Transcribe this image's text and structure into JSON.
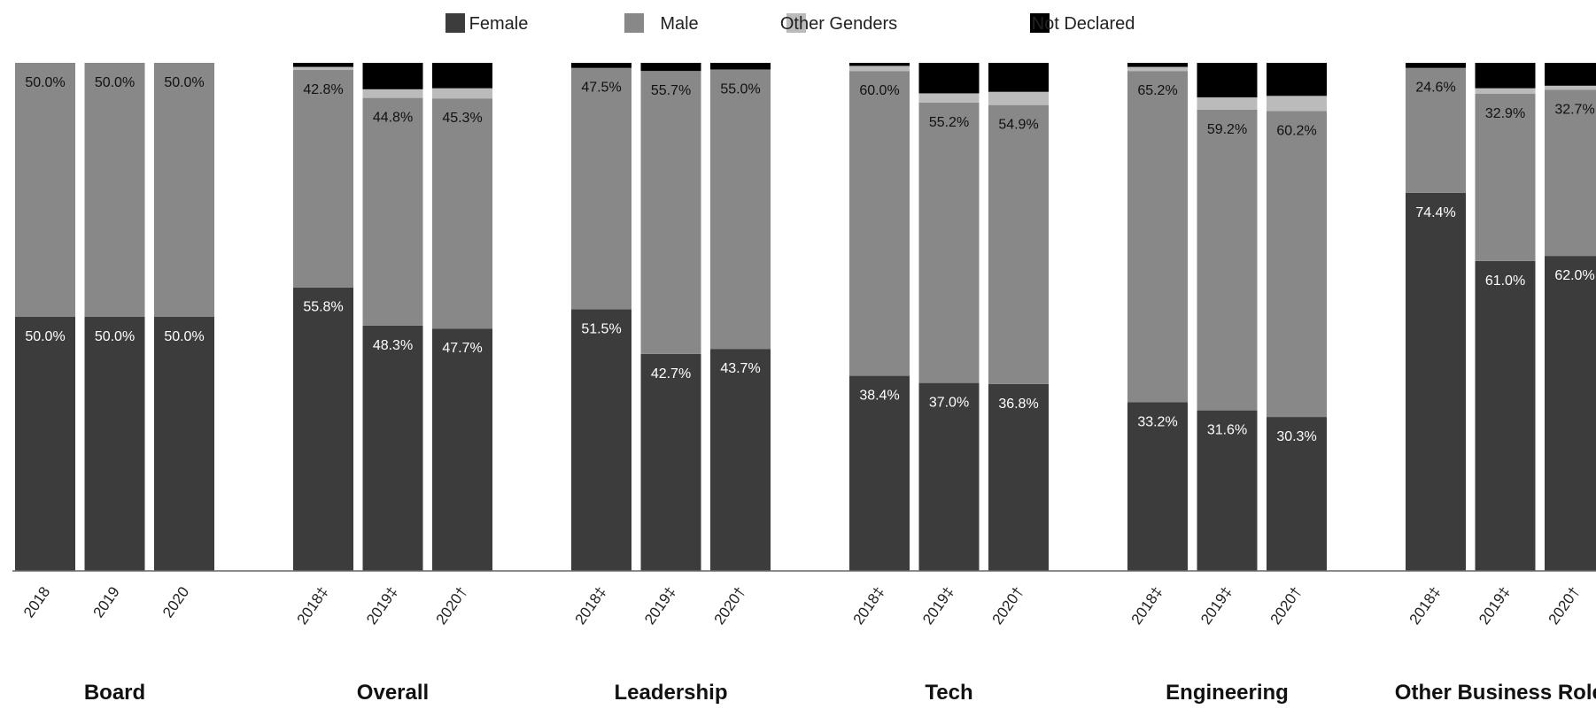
{
  "chart_data": {
    "type": "bar",
    "stacked": true,
    "ylim": [
      0,
      100
    ],
    "grid": false,
    "legend_position": "top",
    "legend": [
      "Female",
      "Male",
      "Other Genders",
      "Not Declared"
    ],
    "colors": {
      "Female": "#3c3c3c",
      "Male": "#888888",
      "Other Genders": "#bbbbbb",
      "Not Declared": "#000000"
    },
    "groups": [
      {
        "name": "Board",
        "bars": [
          {
            "label": "2018",
            "female": 50.0,
            "male": 50.0,
            "other": 0.0,
            "nd": 0.0,
            "female_label": "50.0%",
            "male_label": "50.0%"
          },
          {
            "label": "2019",
            "female": 50.0,
            "male": 50.0,
            "other": 0.0,
            "nd": 0.0,
            "female_label": "50.0%",
            "male_label": "50.0%"
          },
          {
            "label": "2020",
            "female": 50.0,
            "male": 50.0,
            "other": 0.0,
            "nd": 0.0,
            "female_label": "50.0%",
            "male_label": "50.0%"
          }
        ]
      },
      {
        "name": "Overall",
        "bars": [
          {
            "label": "2018‡",
            "female": 55.8,
            "male": 42.8,
            "other": 0.6,
            "nd": 0.8,
            "female_label": "55.8%",
            "male_label": "42.8%"
          },
          {
            "label": "2019‡",
            "female": 48.3,
            "male": 44.8,
            "other": 1.7,
            "nd": 5.2,
            "female_label": "48.3%",
            "male_label": "44.8%"
          },
          {
            "label": "2020†",
            "female": 47.7,
            "male": 45.3,
            "other": 2.0,
            "nd": 5.0,
            "female_label": "47.7%",
            "male_label": "45.3%"
          }
        ]
      },
      {
        "name": "Leadership",
        "bars": [
          {
            "label": "2018‡",
            "female": 51.5,
            "male": 47.5,
            "other": 0.0,
            "nd": 1.0,
            "female_label": "51.5%",
            "male_label": "47.5%"
          },
          {
            "label": "2019‡",
            "female": 42.7,
            "male": 55.7,
            "other": 0.0,
            "nd": 1.6,
            "female_label": "42.7%",
            "male_label": "55.7%"
          },
          {
            "label": "2020†",
            "female": 43.7,
            "male": 55.0,
            "other": 0.0,
            "nd": 1.3,
            "female_label": "43.7%",
            "male_label": "55.0%"
          }
        ]
      },
      {
        "name": "Tech",
        "bars": [
          {
            "label": "2018‡",
            "female": 38.4,
            "male": 60.0,
            "other": 1.0,
            "nd": 0.6,
            "female_label": "38.4%",
            "male_label": "60.0%"
          },
          {
            "label": "2019‡",
            "female": 37.0,
            "male": 55.2,
            "other": 1.8,
            "nd": 6.0,
            "female_label": "37.0%",
            "male_label": "55.2%"
          },
          {
            "label": "2020†",
            "female": 36.8,
            "male": 54.9,
            "other": 2.6,
            "nd": 5.7,
            "female_label": "36.8%",
            "male_label": "54.9%"
          }
        ]
      },
      {
        "name": "Engineering",
        "bars": [
          {
            "label": "2018‡",
            "female": 33.2,
            "male": 65.2,
            "other": 0.8,
            "nd": 0.8,
            "female_label": "33.2%",
            "male_label": "65.2%"
          },
          {
            "label": "2019‡",
            "female": 31.6,
            "male": 59.2,
            "other": 2.4,
            "nd": 6.8,
            "female_label": "31.6%",
            "male_label": "59.2%"
          },
          {
            "label": "2020†",
            "female": 30.3,
            "male": 60.2,
            "other": 3.0,
            "nd": 6.5,
            "female_label": "30.3%",
            "male_label": "60.2%"
          }
        ]
      },
      {
        "name": "Other Business Roles",
        "bars": [
          {
            "label": "2018‡",
            "female": 74.4,
            "male": 24.6,
            "other": 0.0,
            "nd": 1.0,
            "female_label": "74.4%",
            "male_label": "24.6%"
          },
          {
            "label": "2019‡",
            "female": 61.0,
            "male": 32.9,
            "other": 1.1,
            "nd": 5.0,
            "female_label": "61.0%",
            "male_label": "32.9%"
          },
          {
            "label": "2020†",
            "female": 62.0,
            "male": 32.7,
            "other": 0.8,
            "nd": 4.5,
            "female_label": "62.0%",
            "male_label": "32.7%"
          }
        ]
      }
    ]
  }
}
